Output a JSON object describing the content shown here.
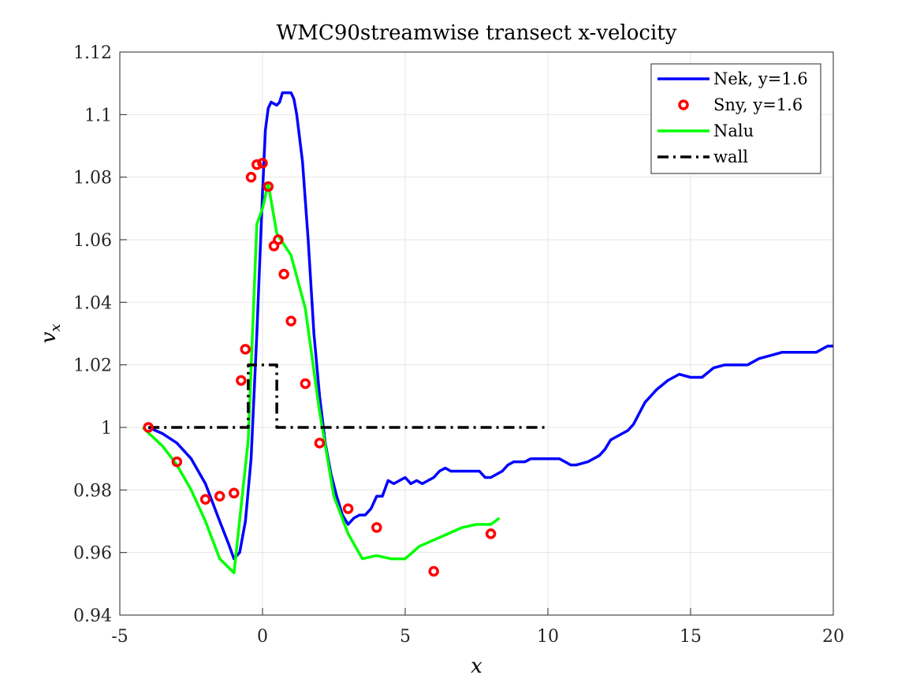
{
  "chart_data": {
    "type": "line",
    "title": "WMC90streamwise transect x-velocity",
    "xlabel": "x",
    "ylabel": "v",
    "ylabel_subscript": "x",
    "xlim": [
      -5,
      20
    ],
    "ylim": [
      0.94,
      1.12
    ],
    "xticks": [
      -5,
      0,
      5,
      10,
      15,
      20
    ],
    "xtick_labels": [
      "-5",
      "0",
      "5",
      "10",
      "15",
      "20"
    ],
    "yticks": [
      0.94,
      0.96,
      0.98,
      1.0,
      1.02,
      1.04,
      1.06,
      1.08,
      1.1,
      1.12
    ],
    "ytick_labels": [
      "0.94",
      "0.96",
      "0.98",
      "1",
      "1.02",
      "1.04",
      "1.06",
      "1.08",
      "1.1",
      "1.12"
    ],
    "grid": true,
    "legend_position": "top-right",
    "series": [
      {
        "name": "Nek, y=1.6",
        "style": "solid-line",
        "color": "#0000ff",
        "x": [
          -4,
          -3.5,
          -3,
          -2.5,
          -2,
          -1.5,
          -1.2,
          -1,
          -0.8,
          -0.6,
          -0.4,
          -0.2,
          0,
          0.1,
          0.2,
          0.3,
          0.5,
          0.6,
          0.7,
          0.8,
          0.9,
          1.0,
          1.1,
          1.2,
          1.4,
          1.6,
          1.8,
          2.0,
          2.2,
          2.4,
          2.6,
          2.8,
          3.0,
          3.2,
          3.4,
          3.6,
          3.8,
          4.0,
          4.2,
          4.4,
          4.6,
          4.8,
          5.0,
          5.2,
          5.4,
          5.6,
          5.8,
          6.0,
          6.2,
          6.4,
          6.6,
          6.8,
          7.0,
          7.2,
          7.4,
          7.6,
          7.8,
          8.0,
          8.2,
          8.4,
          8.6,
          8.8,
          9.0,
          9.2,
          9.4,
          9.6,
          9.8,
          10.0,
          10.4,
          10.8,
          11.0,
          11.4,
          11.8,
          12.0,
          12.2,
          12.6,
          12.8,
          13.0,
          13.4,
          13.8,
          14.2,
          14.6,
          15.0,
          15.4,
          15.8,
          16.2,
          16.6,
          17.0,
          17.4,
          17.8,
          18.2,
          18.6,
          19.0,
          19.4,
          19.8,
          20.0
        ],
        "y": [
          1.0,
          0.998,
          0.995,
          0.99,
          0.982,
          0.97,
          0.963,
          0.958,
          0.96,
          0.97,
          0.99,
          1.03,
          1.075,
          1.095,
          1.102,
          1.104,
          1.103,
          1.104,
          1.107,
          1.107,
          1.107,
          1.107,
          1.105,
          1.1,
          1.085,
          1.06,
          1.03,
          1.01,
          0.995,
          0.985,
          0.978,
          0.972,
          0.969,
          0.971,
          0.972,
          0.972,
          0.974,
          0.978,
          0.978,
          0.983,
          0.982,
          0.983,
          0.984,
          0.982,
          0.983,
          0.982,
          0.983,
          0.984,
          0.986,
          0.987,
          0.986,
          0.986,
          0.986,
          0.986,
          0.986,
          0.986,
          0.984,
          0.984,
          0.985,
          0.986,
          0.988,
          0.989,
          0.989,
          0.989,
          0.99,
          0.99,
          0.99,
          0.99,
          0.99,
          0.988,
          0.988,
          0.989,
          0.991,
          0.993,
          0.996,
          0.998,
          0.999,
          1.001,
          1.008,
          1.012,
          1.015,
          1.017,
          1.016,
          1.016,
          1.019,
          1.02,
          1.02,
          1.02,
          1.022,
          1.023,
          1.024,
          1.024,
          1.024,
          1.024,
          1.026,
          1.026
        ]
      },
      {
        "name": "Sny, y=1.6",
        "style": "circle-markers",
        "color": "#ff0000",
        "x": [
          -4,
          -3,
          -2,
          -1.5,
          -1,
          -0.75,
          -0.6,
          -0.4,
          -0.2,
          0,
          0.2,
          0.4,
          0.55,
          0.75,
          1.0,
          1.5,
          2.0,
          3.0,
          4.0,
          6.0,
          8.0
        ],
        "y": [
          1.0,
          0.989,
          0.977,
          0.978,
          0.979,
          1.015,
          1.025,
          1.08,
          1.084,
          1.0845,
          1.077,
          1.058,
          1.06,
          1.049,
          1.034,
          1.014,
          0.995,
          0.974,
          0.968,
          0.954,
          0.966
        ]
      },
      {
        "name": "Nalu",
        "style": "solid-line",
        "color": "#00ff00",
        "x": [
          -4.2,
          -3.5,
          -3,
          -2.5,
          -2,
          -1.5,
          -1,
          -0.5,
          -0.2,
          0,
          0.2,
          0.5,
          1.0,
          1.5,
          2.0,
          2.5,
          3.0,
          3.5,
          4.0,
          4.5,
          5.0,
          5.5,
          6.0,
          6.5,
          7.0,
          7.5,
          8.0,
          8.3
        ],
        "y": [
          1.0,
          0.994,
          0.988,
          0.98,
          0.97,
          0.958,
          0.9535,
          0.996,
          1.065,
          1.07,
          1.078,
          1.062,
          1.055,
          1.038,
          1.005,
          0.978,
          0.966,
          0.958,
          0.959,
          0.958,
          0.958,
          0.962,
          0.964,
          0.966,
          0.968,
          0.969,
          0.969,
          0.971
        ]
      },
      {
        "name": "wall",
        "style": "dash-dot-line",
        "color": "#000000",
        "x": [
          -4,
          -0.5,
          -0.5,
          0.5,
          0.5,
          10
        ],
        "y": [
          1.0,
          1.0,
          1.02,
          1.02,
          1.0,
          1.0
        ]
      }
    ]
  }
}
